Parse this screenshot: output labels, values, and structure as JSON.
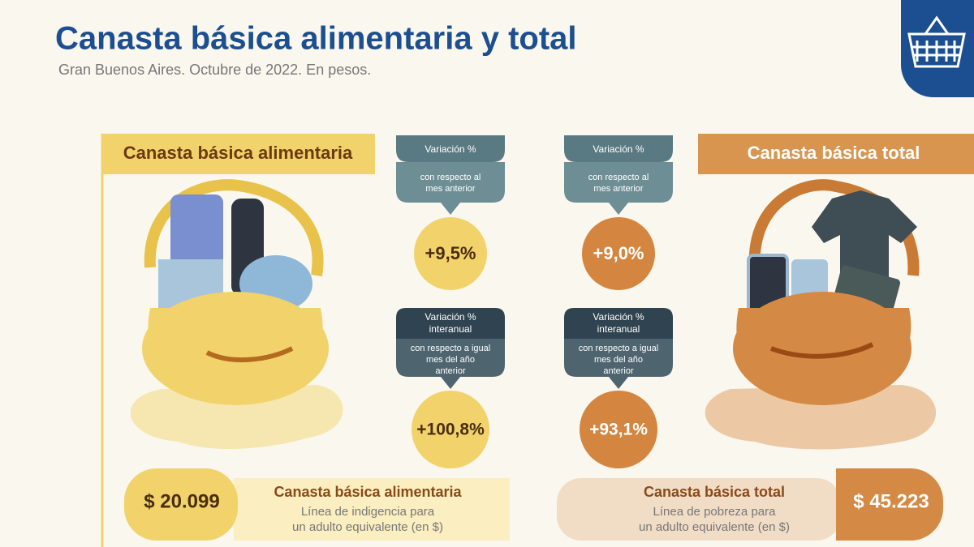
{
  "header": {
    "title": "Canasta básica alimentaria y total",
    "subtitle": "Gran Buenos Aires. Octubre de 2022. En pesos."
  },
  "left": {
    "heading": "Canasta básica alimentaria",
    "monthly": {
      "label": "Variación %",
      "lines": [
        "con respecto al",
        "mes anterior"
      ],
      "value": "+9,5%"
    },
    "annual": {
      "label_lines": [
        "Variación %",
        "interanual"
      ],
      "lines": [
        "con respecto a igual",
        "mes del año",
        "anterior"
      ],
      "value": "+100,8%"
    },
    "footer": {
      "amount": "$ 20.099",
      "title": "Canasta básica alimentaria",
      "lines": [
        "Línea de indigencia para",
        "un adulto equivalente (en $)"
      ]
    }
  },
  "right": {
    "heading": "Canasta básica total",
    "monthly": {
      "label": "Variación %",
      "lines": [
        "con respecto al",
        "mes anterior"
      ],
      "value": "+9,0%"
    },
    "annual": {
      "label_lines": [
        "Variación %",
        "interanual"
      ],
      "lines": [
        "con respecto a igual",
        "mes del año",
        "anterior"
      ],
      "value": "+93,1%"
    },
    "footer": {
      "amount": "$ 45.223",
      "title": "Canasta básica total",
      "lines": [
        "Línea de pobreza para",
        "un adulto equivalente (en $)"
      ]
    }
  }
}
